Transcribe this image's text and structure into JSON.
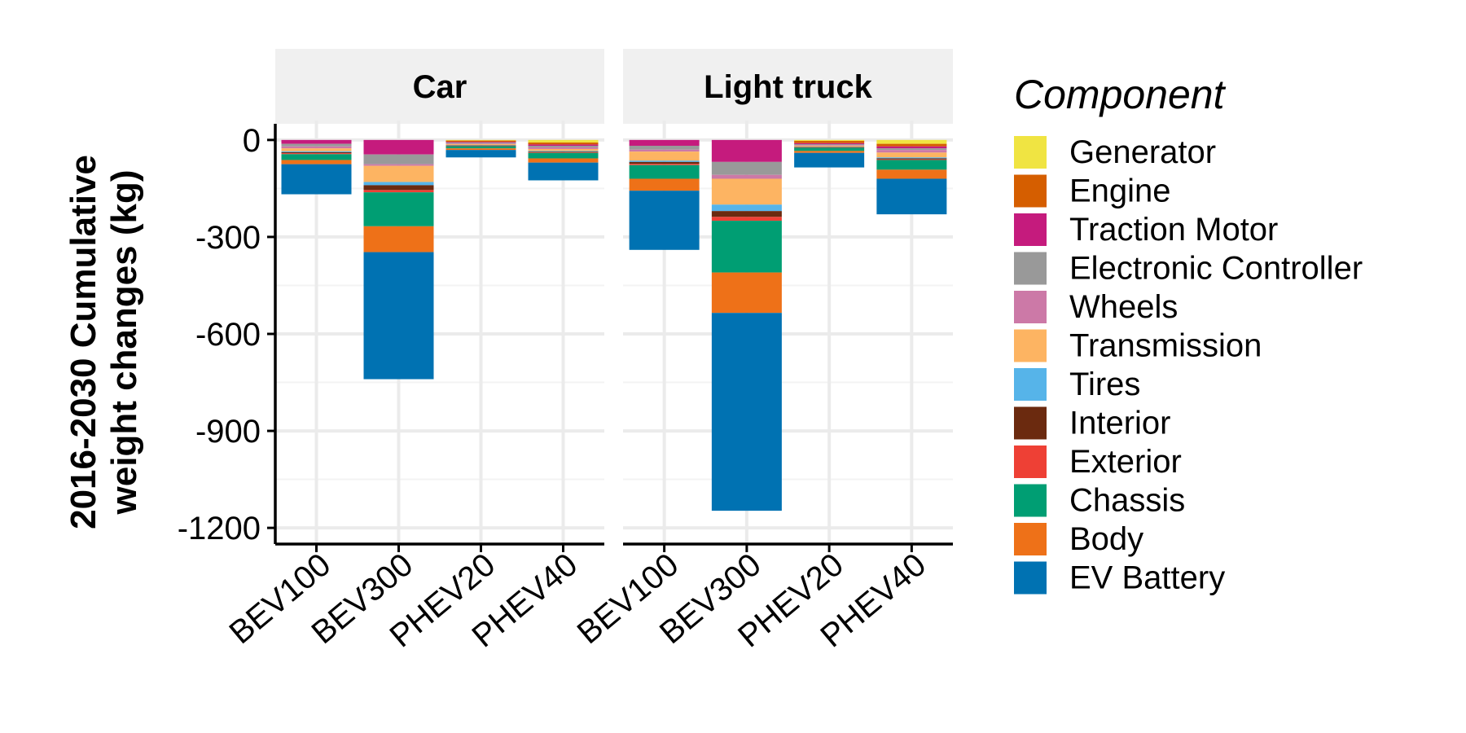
{
  "chart_data": {
    "type": "bar",
    "stacked": true,
    "facets": [
      "Car",
      "Light truck"
    ],
    "categories": [
      "BEV100",
      "BEV300",
      "PHEV20",
      "PHEV40"
    ],
    "ylabel": [
      "2016-2030 Cumulative",
      "weight changes (kg)"
    ],
    "ylim": [
      -1250,
      50
    ],
    "yticks": [
      0,
      -300,
      -600,
      -900,
      -1200
    ],
    "legend": {
      "title": "Component",
      "placement": "right"
    },
    "series": [
      {
        "name": "Generator",
        "color": "#F0E442",
        "values": {
          "Car": [
            0,
            0,
            -2,
            -8
          ],
          "Light truck": [
            0,
            0,
            -3,
            -12
          ]
        }
      },
      {
        "name": "Engine",
        "color": "#D55E00",
        "values": {
          "Car": [
            0,
            0,
            -4,
            -6
          ],
          "Light truck": [
            0,
            0,
            -7,
            -8
          ]
        }
      },
      {
        "name": "Traction Motor",
        "color": "#C51B7D",
        "values": {
          "Car": [
            -12,
            -45,
            -2,
            -4
          ],
          "Light truck": [
            -18,
            -68,
            -3,
            -6
          ]
        }
      },
      {
        "name": "Electronic Controller",
        "color": "#999999",
        "values": {
          "Car": [
            -8,
            -30,
            -3,
            -5
          ],
          "Light truck": [
            -12,
            -40,
            -3,
            -5
          ]
        }
      },
      {
        "name": "Wheels",
        "color": "#CC79A7",
        "values": {
          "Car": [
            -6,
            -5,
            -2,
            -5
          ],
          "Light truck": [
            -6,
            -12,
            -2,
            -8
          ]
        }
      },
      {
        "name": "Transmission",
        "color": "#FDB462",
        "values": {
          "Car": [
            -9,
            -50,
            -3,
            -6
          ],
          "Light truck": [
            -28,
            -80,
            -3,
            -15
          ]
        }
      },
      {
        "name": "Tires",
        "color": "#56B4E9",
        "values": {
          "Car": [
            -3,
            -10,
            -1,
            -2
          ],
          "Light truck": [
            -4,
            -20,
            -1,
            -3
          ]
        }
      },
      {
        "name": "Interior",
        "color": "#6B2A0F",
        "values": {
          "Car": [
            -3,
            -15,
            -1,
            -2
          ],
          "Light truck": [
            -6,
            -18,
            -1,
            -3
          ]
        }
      },
      {
        "name": "Exterior",
        "color": "#EE4035",
        "values": {
          "Car": [
            -3,
            -7,
            -1,
            -2
          ],
          "Light truck": [
            -4,
            -12,
            -1,
            -2
          ]
        }
      },
      {
        "name": "Chassis",
        "color": "#009E73",
        "values": {
          "Car": [
            -18,
            -105,
            -7,
            -17
          ],
          "Light truck": [
            -42,
            -160,
            -10,
            -30
          ]
        }
      },
      {
        "name": "Body",
        "color": "#EE7118",
        "values": {
          "Car": [
            -13,
            -80,
            -5,
            -13
          ],
          "Light truck": [
            -37,
            -125,
            -6,
            -28
          ]
        }
      },
      {
        "name": "EV Battery",
        "color": "#0072B2",
        "values": {
          "Car": [
            -93,
            -393,
            -23,
            -55
          ],
          "Light truck": [
            -183,
            -612,
            -45,
            -110
          ]
        }
      }
    ]
  }
}
